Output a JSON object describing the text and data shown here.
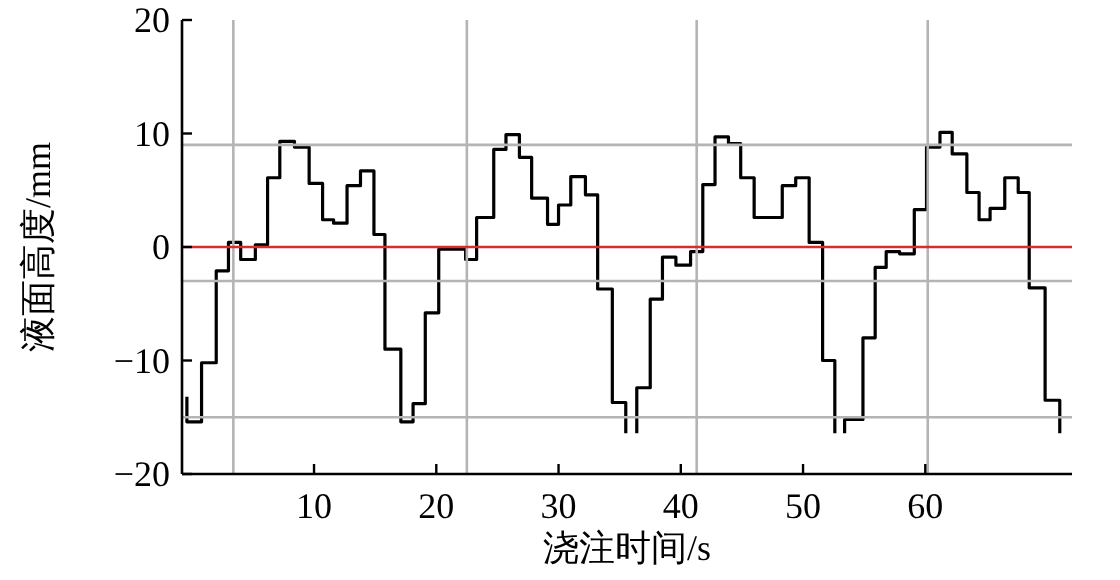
{
  "chart_data": {
    "type": "step",
    "xlabel": "浇注时间/s",
    "ylabel": "液面高度/mm",
    "xlim": [
      -0.8,
      72
    ],
    "ylim": [
      -20,
      20
    ],
    "xticks": [
      10,
      20,
      30,
      40,
      50,
      60
    ],
    "yticks": [
      {
        "value": -20,
        "label": "−20"
      },
      {
        "value": -10,
        "label": "−10"
      },
      0,
      10,
      20
    ],
    "ref_lines": [
      {
        "axis": "y",
        "value": 9,
        "color": "#b4b4b4"
      },
      {
        "axis": "y",
        "value": -3,
        "color": "#b4b4b4"
      },
      {
        "axis": "y",
        "value": -15,
        "color": "#b4b4b4"
      },
      {
        "axis": "x",
        "value": 3.4,
        "color": "#b4b4b4"
      },
      {
        "axis": "x",
        "value": 22.5,
        "color": "#b4b4b4"
      },
      {
        "axis": "x",
        "value": 41.3,
        "color": "#b4b4b4"
      },
      {
        "axis": "x",
        "value": 60.2,
        "color": "#b4b4b4"
      },
      {
        "axis": "y",
        "value": 0,
        "color": "#d03030"
      }
    ],
    "series": [
      {
        "color": "#000000",
        "x": [
          -0.4,
          -0.4,
          0.8,
          2.0,
          3.0,
          4.0,
          5.2,
          6.2,
          7.2,
          8.4,
          9.6,
          10.7,
          11.6,
          12.7,
          13.8,
          14.9,
          15.8,
          17.1,
          18.1,
          19.1,
          20.2,
          22.4,
          23.3,
          24.7,
          25.7,
          26.8,
          27.8,
          29.1,
          30.0,
          31.0,
          32.2,
          33.2,
          34.4,
          35.5
        ],
        "values": [
          -13.2,
          -15.4,
          -10.2,
          -2.1,
          0.4,
          -1.1,
          0.2,
          6.1,
          9.3,
          8.8,
          5.6,
          2.4,
          2.1,
          5.4,
          6.7,
          1.1,
          -9.0,
          -15.4,
          -13.8,
          -5.8,
          -0.2,
          -1.1,
          2.6,
          8.6,
          9.9,
          7.9,
          4.3,
          2.0,
          3.7,
          6.2,
          4.6,
          -3.7,
          -13.7,
          -16.4
        ]
      },
      {
        "color": "#000000",
        "x": [
          36.4,
          36.4,
          37.5,
          38.5,
          39.6,
          40.8,
          41.8,
          42.8,
          43.9,
          44.9,
          46.0,
          48.3,
          49.4,
          50.5,
          51.6,
          52.6
        ],
        "values": [
          -16.4,
          -12.4,
          -4.6,
          -0.9,
          -1.6,
          -0.4,
          5.5,
          9.7,
          9.1,
          6.1,
          2.6,
          5.4,
          6.1,
          0.4,
          -10.0,
          -16.4
        ]
      },
      {
        "color": "#000000",
        "x": [
          53.4,
          53.4,
          54.9,
          55.9,
          56.8,
          57.9,
          59.1,
          60.1,
          61.2,
          62.2,
          63.4,
          64.4,
          65.3,
          66.5,
          67.6,
          68.5,
          69.8,
          71.0
        ],
        "values": [
          -16.4,
          -15.2,
          -8.0,
          -1.8,
          -0.4,
          -0.6,
          3.3,
          8.8,
          10.1,
          8.2,
          4.8,
          2.4,
          3.4,
          6.1,
          4.8,
          -3.6,
          -13.5,
          -16.4
        ]
      }
    ]
  }
}
